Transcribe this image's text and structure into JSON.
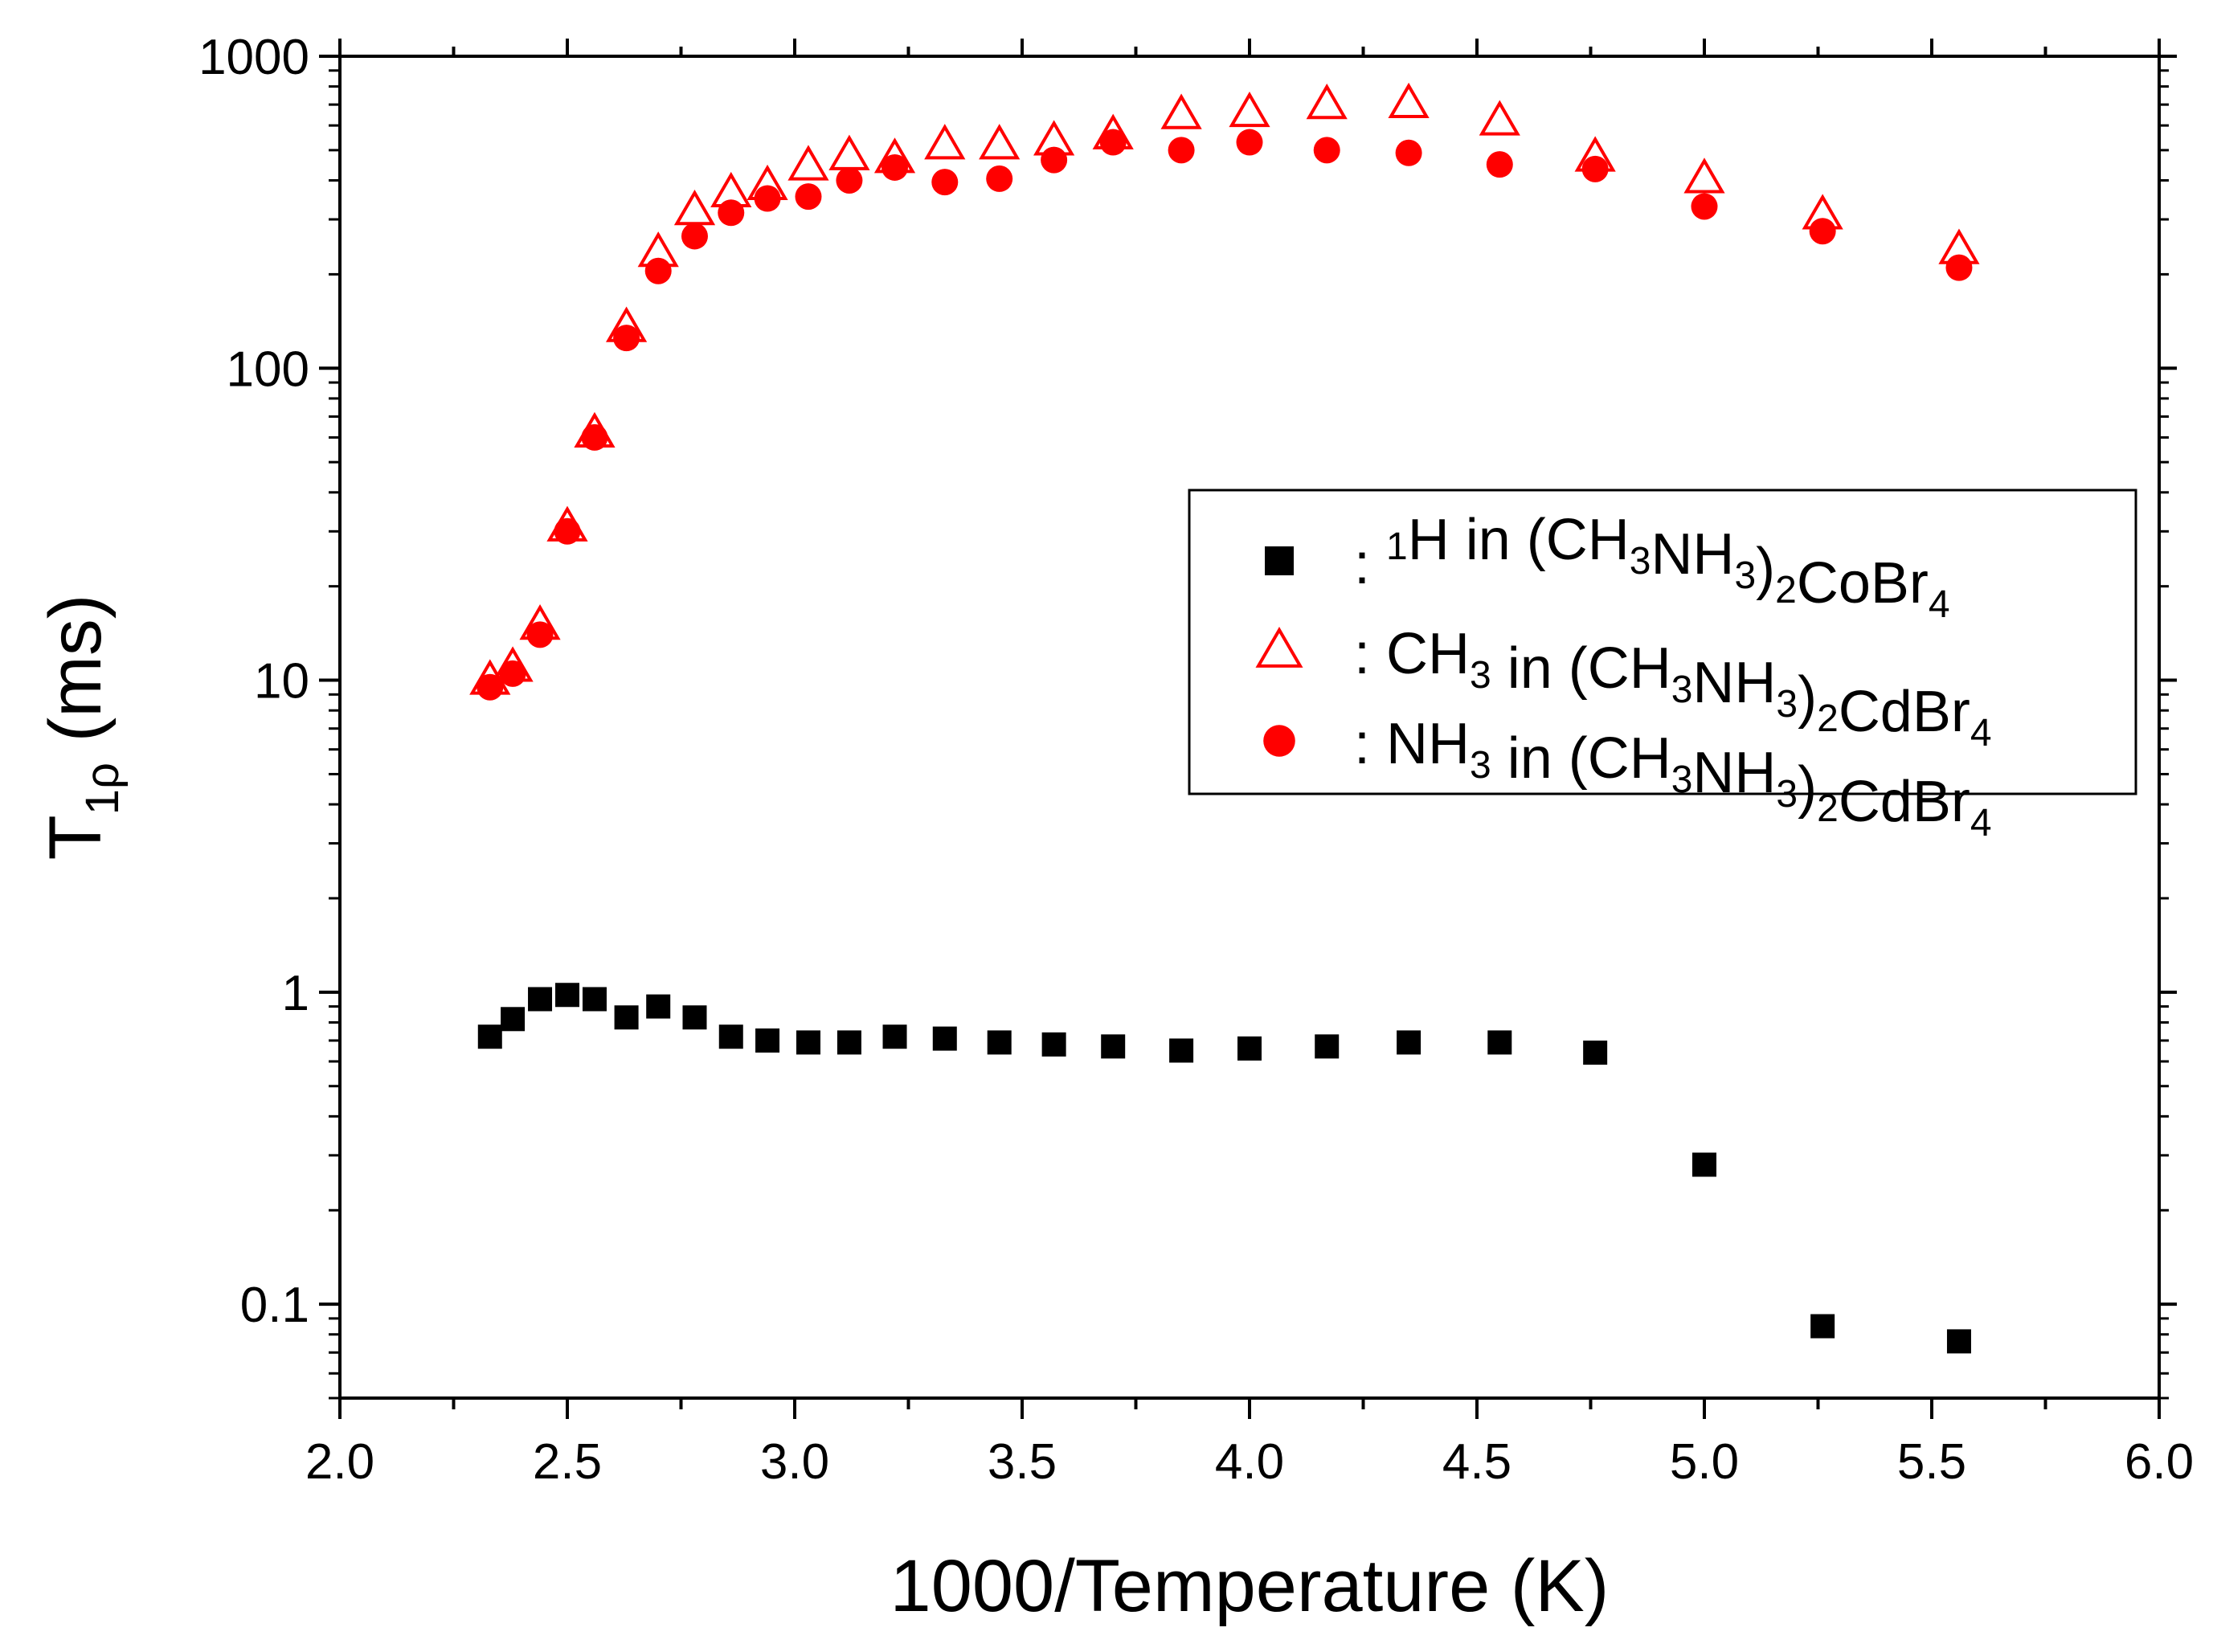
{
  "chart_data": {
    "type": "scatter",
    "xlabel": "1000/Temperature (K)",
    "ylabel": {
      "base": "T",
      "sub": "1ρ",
      "rest": " (ms)"
    },
    "xlim": [
      2.0,
      6.0
    ],
    "ylim": [
      0.05,
      1000
    ],
    "yscale": "log",
    "x_ticks": [
      2.0,
      2.5,
      3.0,
      3.5,
      4.0,
      4.5,
      5.0,
      5.5,
      6.0
    ],
    "x_tick_labels": [
      "2.0",
      "2.5",
      "3.0",
      "3.5",
      "4.0",
      "4.5",
      "5.0",
      "5.5",
      "6.0"
    ],
    "y_ticks": [
      0.1,
      1,
      10,
      100,
      1000
    ],
    "y_tick_labels": [
      "0.1",
      "1",
      "10",
      "100",
      "1000"
    ],
    "legend_position": "center-right",
    "series": [
      {
        "name": "CoBr4-1H",
        "label": [
          {
            "t": ":  "
          },
          {
            "t": "1",
            "sup": true
          },
          {
            "t": "H in (CH"
          },
          {
            "t": "3",
            "sub": true
          },
          {
            "t": "NH"
          },
          {
            "t": "3",
            "sub": true
          },
          {
            "t": ")"
          },
          {
            "t": "2",
            "sub": true
          },
          {
            "t": "CoBr"
          },
          {
            "t": "4",
            "sub": true
          }
        ],
        "marker": "square",
        "color": "#000000",
        "x": [
          2.33,
          2.38,
          2.44,
          2.5,
          2.56,
          2.63,
          2.7,
          2.78,
          2.86,
          2.94,
          3.03,
          3.12,
          3.22,
          3.33,
          3.45,
          3.57,
          3.7,
          3.85,
          4.0,
          4.17,
          4.35,
          4.55,
          4.76,
          5.0,
          5.26,
          5.56
        ],
        "y": [
          0.72,
          0.82,
          0.95,
          0.98,
          0.95,
          0.83,
          0.9,
          0.83,
          0.72,
          0.7,
          0.69,
          0.69,
          0.72,
          0.71,
          0.69,
          0.68,
          0.67,
          0.65,
          0.66,
          0.67,
          0.69,
          0.69,
          0.64,
          0.28,
          0.085,
          0.076
        ]
      },
      {
        "name": "CdBr4-CH3",
        "label": [
          {
            "t": ":  CH"
          },
          {
            "t": "3",
            "sub": true
          },
          {
            "t": " in (CH"
          },
          {
            "t": "3",
            "sub": true
          },
          {
            "t": "NH"
          },
          {
            "t": "3",
            "sub": true
          },
          {
            "t": ")"
          },
          {
            "t": "2",
            "sub": true
          },
          {
            "t": "CdBr"
          },
          {
            "t": "4",
            "sub": true
          }
        ],
        "marker": "triangle-open",
        "color": "#ff0000",
        "x": [
          2.33,
          2.38,
          2.44,
          2.5,
          2.56,
          2.63,
          2.7,
          2.78,
          2.86,
          2.94,
          3.03,
          3.12,
          3.22,
          3.33,
          3.45,
          3.57,
          3.7,
          3.85,
          4.0,
          4.17,
          4.35,
          4.55,
          4.76,
          5.0,
          5.26,
          5.56
        ],
        "y": [
          10,
          11,
          15,
          31,
          62,
          135,
          235,
          320,
          365,
          385,
          445,
          480,
          470,
          520,
          520,
          535,
          560,
          650,
          660,
          700,
          705,
          620,
          475,
          405,
          310,
          240
        ]
      },
      {
        "name": "CdBr4-NH3",
        "label": [
          {
            "t": ":  NH"
          },
          {
            "t": "3",
            "sub": true
          },
          {
            "t": " in (CH"
          },
          {
            "t": "3",
            "sub": true
          },
          {
            "t": "NH"
          },
          {
            "t": "3",
            "sub": true
          },
          {
            "t": ")"
          },
          {
            "t": "2",
            "sub": true
          },
          {
            "t": "CdBr"
          },
          {
            "t": "4",
            "sub": true
          }
        ],
        "marker": "circle-filled",
        "color": "#ff0000",
        "x": [
          2.33,
          2.38,
          2.44,
          2.5,
          2.56,
          2.63,
          2.7,
          2.78,
          2.86,
          2.94,
          3.03,
          3.12,
          3.22,
          3.33,
          3.45,
          3.57,
          3.7,
          3.85,
          4.0,
          4.17,
          4.35,
          4.55,
          4.76,
          5.0,
          5.26,
          5.56
        ],
        "y": [
          9.5,
          10.5,
          14,
          30,
          60,
          125,
          205,
          265,
          315,
          350,
          355,
          400,
          440,
          395,
          405,
          465,
          530,
          500,
          530,
          500,
          490,
          450,
          435,
          330,
          275,
          210
        ]
      }
    ]
  }
}
